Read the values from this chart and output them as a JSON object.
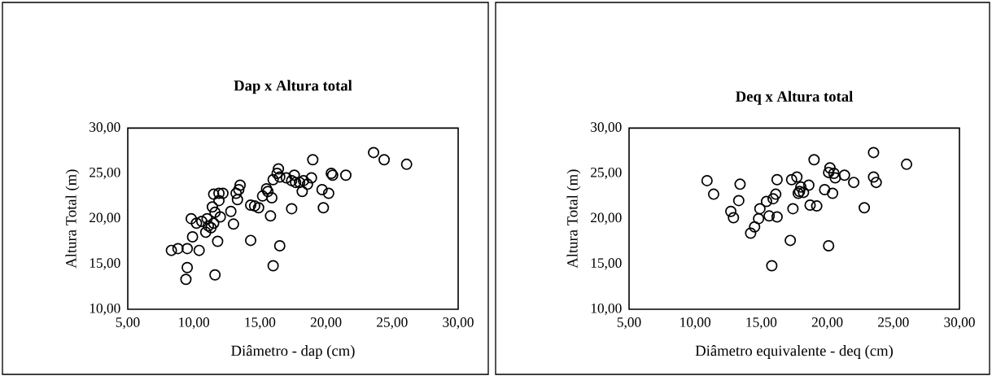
{
  "chart_data": [
    {
      "type": "scatter",
      "title": "Dap x Altura total",
      "xlabel": "Diâmetro - dap (cm)",
      "ylabel": "Altura Total (m)",
      "marker": "circle",
      "xlim": [
        5,
        30
      ],
      "ylim": [
        10,
        30
      ],
      "xticks": [
        {
          "value": 5,
          "label": "5,00"
        },
        {
          "value": 10,
          "label": "10,00"
        },
        {
          "value": 15,
          "label": "15,00"
        },
        {
          "value": 20,
          "label": "20,00"
        },
        {
          "value": 25,
          "label": "25,00"
        },
        {
          "value": 30,
          "label": "30,00"
        }
      ],
      "yticks": [
        {
          "value": 10,
          "label": "10,00"
        },
        {
          "value": 15,
          "label": "15,00"
        },
        {
          "value": 20,
          "label": "20,00"
        },
        {
          "value": 25,
          "label": "25,00"
        },
        {
          "value": 30,
          "label": "30,00"
        }
      ],
      "series": [
        {
          "color": "#000000",
          "x": [
            8.3,
            8.8,
            9.5,
            9.5,
            9.4,
            10.4,
            9.9,
            9.8,
            10.2,
            10.6,
            11.0,
            10.9,
            11.3,
            11.5,
            11.1,
            11.6,
            11.4,
            12.0,
            11.8,
            11.6,
            11.5,
            11.9,
            12.2,
            11.9,
            12.8,
            13.0,
            13.2,
            13.3,
            13.5,
            13.4,
            14.3,
            14.6,
            14.9,
            15.2,
            14.3,
            15.5,
            15.6,
            15.8,
            15.9,
            16.0,
            16.3,
            16.4,
            16.0,
            16.5,
            16.5,
            17.0,
            17.4,
            17.6,
            17.7,
            17.4,
            18.0,
            18.3,
            18.2,
            18.6,
            18.9,
            19.0,
            19.7,
            19.8,
            20.2,
            20.4,
            20.5,
            21.5,
            23.6,
            24.4,
            26.1
          ],
          "values": [
            16.5,
            16.7,
            16.7,
            14.6,
            13.3,
            16.5,
            18.0,
            20.0,
            19.5,
            19.7,
            20.0,
            18.5,
            19.0,
            19.5,
            19.2,
            20.7,
            21.3,
            20.2,
            17.5,
            13.8,
            22.7,
            22.8,
            22.8,
            22.0,
            20.8,
            19.4,
            22.8,
            22.1,
            23.7,
            23.2,
            21.5,
            21.4,
            21.2,
            22.5,
            17.6,
            23.3,
            23.0,
            20.3,
            22.3,
            24.3,
            25.0,
            25.5,
            14.8,
            17.0,
            24.6,
            24.5,
            24.2,
            24.8,
            24.0,
            21.1,
            24.0,
            24.2,
            23.0,
            23.8,
            24.5,
            26.5,
            23.2,
            21.2,
            22.8,
            25.0,
            24.8,
            24.8,
            27.3,
            26.5,
            26.0
          ]
        }
      ]
    },
    {
      "type": "scatter",
      "title": "Deq x Altura total",
      "xlabel": "Diâmetro equivalente - deq (cm)",
      "ylabel": "Altura Total (m)",
      "marker": "circle",
      "xlim": [
        5,
        30
      ],
      "ylim": [
        10,
        30
      ],
      "xticks": [
        {
          "value": 5,
          "label": "5,00"
        },
        {
          "value": 10,
          "label": "10,00"
        },
        {
          "value": 15,
          "label": "15,00"
        },
        {
          "value": 20,
          "label": "20,00"
        },
        {
          "value": 25,
          "label": "25,00"
        },
        {
          "value": 30,
          "label": "30,00"
        }
      ],
      "yticks": [
        {
          "value": 10,
          "label": "10,00"
        },
        {
          "value": 15,
          "label": "15,00"
        },
        {
          "value": 20,
          "label": "20,00"
        },
        {
          "value": 25,
          "label": "25,00"
        },
        {
          "value": 30,
          "label": "30,00"
        }
      ],
      "series": [
        {
          "color": "#000000",
          "x": [
            10.9,
            11.4,
            13.4,
            13.3,
            12.7,
            12.9,
            14.2,
            14.5,
            14.8,
            14.9,
            15.4,
            15.6,
            15.9,
            16.1,
            16.2,
            16.2,
            15.8,
            17.2,
            17.3,
            17.4,
            17.7,
            17.8,
            17.9,
            18.0,
            18.2,
            18.6,
            18.7,
            19.2,
            19.0,
            19.8,
            20.1,
            20.2,
            20.4,
            20.5,
            20.6,
            20.1,
            21.3,
            22.0,
            22.8,
            23.5,
            23.7,
            23.5,
            26.0
          ],
          "values": [
            24.2,
            22.7,
            23.8,
            22.0,
            20.8,
            20.1,
            18.4,
            19.1,
            20.0,
            21.1,
            21.9,
            20.3,
            22.2,
            22.7,
            24.3,
            20.2,
            14.8,
            17.6,
            24.3,
            21.1,
            24.6,
            22.8,
            23.0,
            23.5,
            22.9,
            23.7,
            21.5,
            21.4,
            26.5,
            23.2,
            25.1,
            25.6,
            22.8,
            25.0,
            24.5,
            17.0,
            24.8,
            24.0,
            21.2,
            24.6,
            24.0,
            27.3,
            26.0
          ]
        }
      ]
    }
  ]
}
